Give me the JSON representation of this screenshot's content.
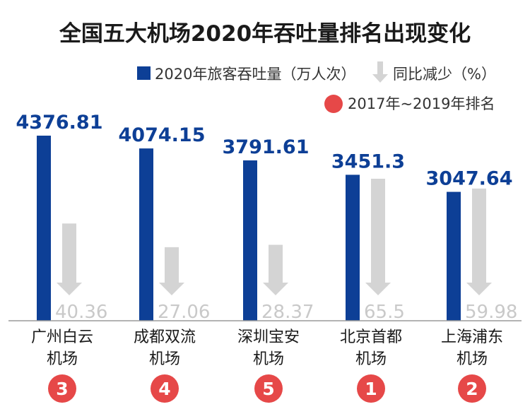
{
  "chart_data": {
    "type": "bar",
    "title": "全国五大机场2020年吞吐量排名出现变化",
    "categories": [
      [
        "广州白云",
        "机场"
      ],
      [
        "成都双流",
        "机场"
      ],
      [
        "深圳宝安",
        "机场"
      ],
      [
        "北京首都",
        "机场"
      ],
      [
        "上海浦东",
        "机场"
      ]
    ],
    "series": [
      {
        "name": "2020年旅客吞吐量（万人次）",
        "values": [
          4376.81,
          4074.15,
          3791.61,
          3451.3,
          3047.64
        ],
        "labels": [
          "4376.81",
          "4074.15",
          "3791.61",
          "3451.3",
          "3047.64"
        ],
        "color": "#0d3f96"
      },
      {
        "name": "同比减少（%）",
        "values": [
          40.36,
          27.06,
          28.37,
          65.5,
          59.98
        ],
        "labels": [
          "40.36",
          "27.06",
          "28.37",
          "65.5",
          "59.98"
        ],
        "color": "#d4d4d4"
      }
    ],
    "ranks": {
      "name": "2017年~2019年排名",
      "values": [
        "3",
        "4",
        "5",
        "1",
        "2"
      ],
      "color": "#e64848"
    },
    "legend_position": "top-right",
    "grid": false
  }
}
